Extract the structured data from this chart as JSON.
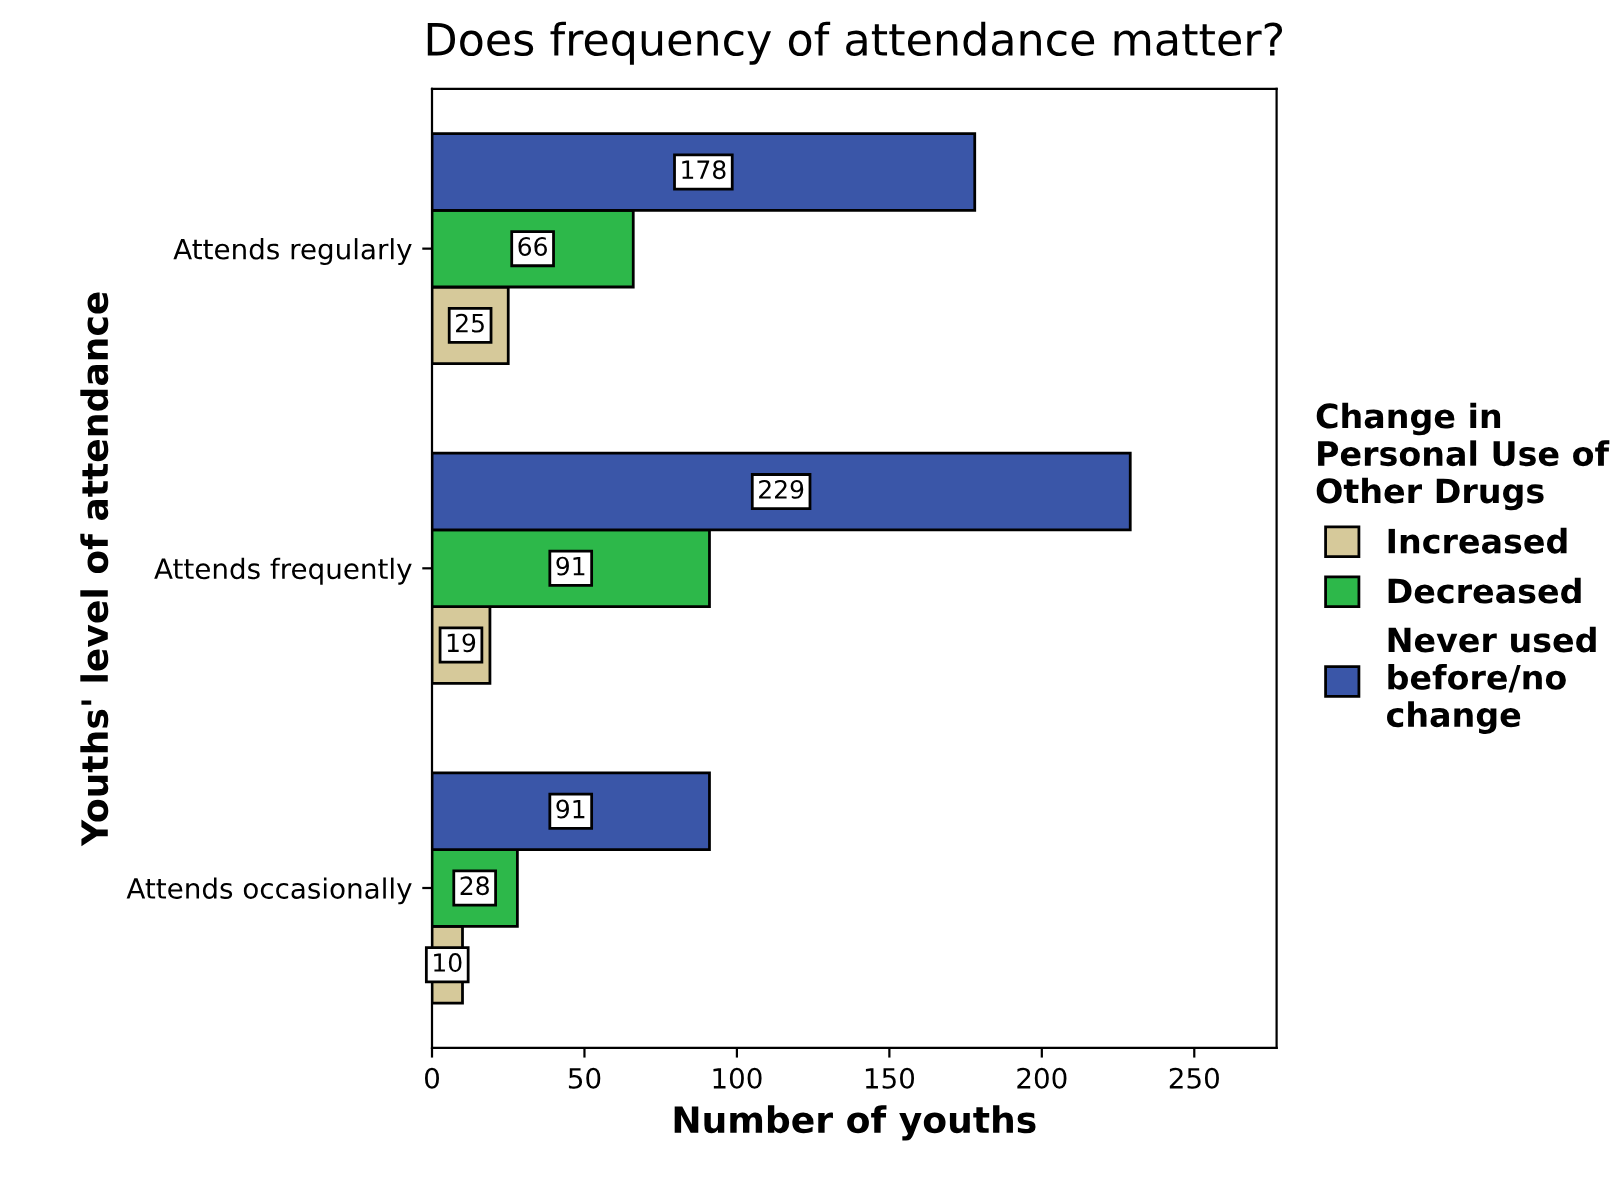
{
  "chart_data": {
    "type": "bar",
    "orientation": "horizontal",
    "title": "Does frequency of attendance matter?",
    "xlabel": "Number of youths",
    "ylabel": "Youths' level of attendance",
    "legend_title": "Change in\nPersonal Use of\nOther Drugs",
    "categories": [
      "Attends regularly",
      "Attends frequently",
      "Attends occasionally"
    ],
    "series": [
      {
        "name": "Increased",
        "color": "#d6c99a",
        "values": [
          25,
          19,
          10
        ]
      },
      {
        "name": "Decreased",
        "color": "#2db84a",
        "values": [
          66,
          91,
          28
        ]
      },
      {
        "name": "Never used\nbefore/no\nchange",
        "color": "#3a56a8",
        "values": [
          178,
          229,
          91
        ]
      }
    ],
    "xlim": [
      0,
      277
    ],
    "xticks": [
      0,
      50,
      100,
      150,
      200,
      250
    ],
    "data_labels": true,
    "grid": false,
    "legend": "right"
  }
}
